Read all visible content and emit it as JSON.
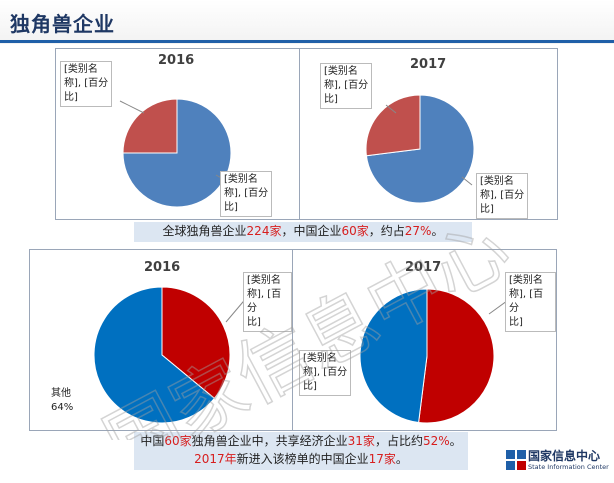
{
  "header": {
    "title": "独角兽企业"
  },
  "logo": {
    "name_zh": "国家信息中心",
    "name_en": "State Information Center"
  },
  "watermark": {
    "text": "国家信息中心"
  },
  "colors": {
    "blue": "#4f81bd",
    "red": "#c0504d",
    "blue_dark": "#0070c0",
    "red_dark": "#c00000",
    "highlight": "#d71e1e"
  },
  "top_caption": {
    "p1": "全球独角兽企业",
    "n1": "224家",
    "p2": "，中国企业",
    "n2": "60家",
    "p3": "，约占",
    "n3": "27%",
    "p4": "。"
  },
  "bottom_caption": {
    "line1": {
      "p1": "中国",
      "n1": "60家",
      "p2": "独角兽企业中，共享经济企业",
      "n2": "31家",
      "p3": "，占比约",
      "n3": "52%",
      "p4": "。"
    },
    "line2": {
      "n1": "2017年",
      "p1": "新进入该榜单的中国企业",
      "n2": "17家",
      "p2": "。"
    }
  },
  "chart_data": [
    {
      "type": "pie",
      "title": "2016",
      "slices": [
        {
          "label": "[类别名\n称], [百分\n比]",
          "value": 75,
          "color": "#4f81bd"
        },
        {
          "label": "[类别名\n称], [百分\n比]",
          "value": 25,
          "color": "#c0504d"
        }
      ]
    },
    {
      "type": "pie",
      "title": "2017",
      "slices": [
        {
          "label": "[类别名\n称], [百分\n比]",
          "value": 73,
          "color": "#4f81bd"
        },
        {
          "label": "[类别名\n称], [百分\n比]",
          "value": 27,
          "color": "#c0504d"
        }
      ]
    },
    {
      "type": "pie",
      "title": "2016",
      "slices": [
        {
          "label": "[类别名\n称], [百分\n比]",
          "value": 36,
          "color": "#c00000"
        },
        {
          "label": "其他\n64%",
          "value": 64,
          "color": "#0070c0"
        }
      ]
    },
    {
      "type": "pie",
      "title": "2017",
      "slices": [
        {
          "label": "[类别名\n称], [百分\n比]",
          "value": 52,
          "color": "#c00000"
        },
        {
          "label": "[类别名\n称], [百分\n比]",
          "value": 48,
          "color": "#0070c0"
        }
      ]
    }
  ]
}
